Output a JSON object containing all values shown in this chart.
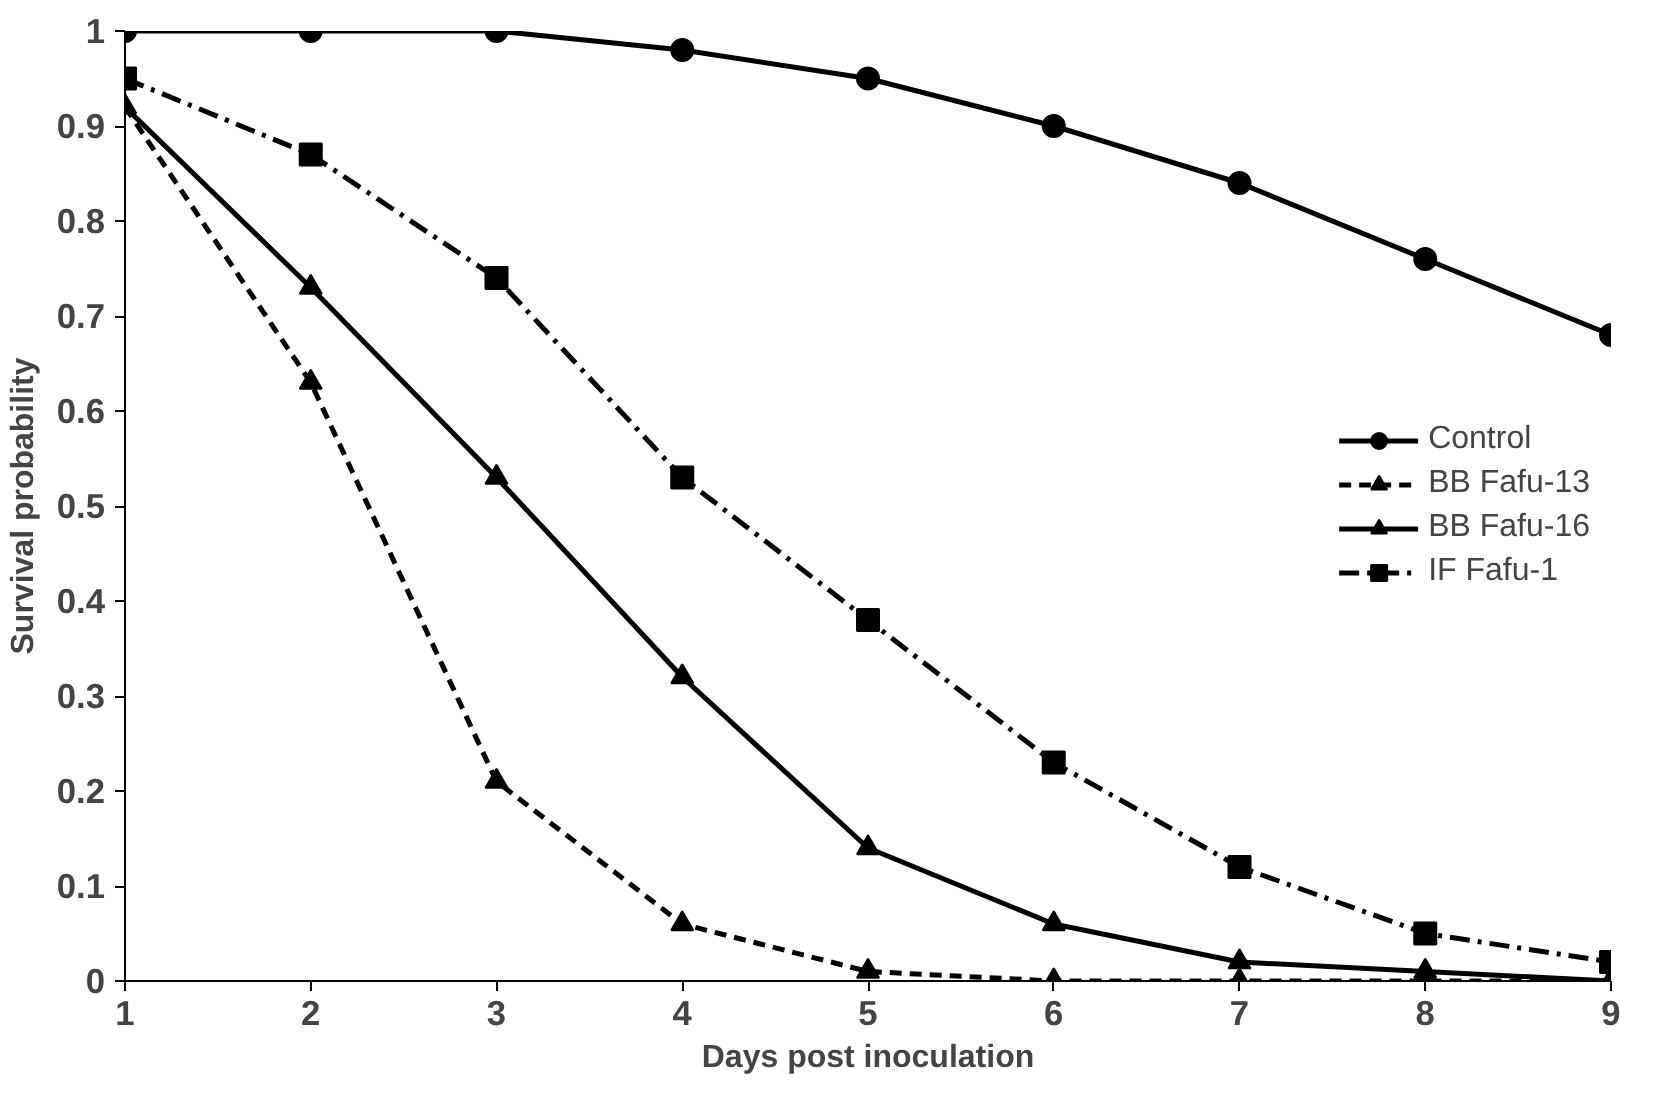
{
  "chart_data": {
    "type": "line",
    "xlabel": "Days post inoculation",
    "ylabel": "Survival probability",
    "x": [
      1,
      2,
      3,
      4,
      5,
      6,
      7,
      8,
      9
    ],
    "series": [
      {
        "name": "Control",
        "color": "#000000",
        "marker": "circle",
        "line_style": "solid",
        "values": [
          1,
          1,
          1,
          0.98,
          0.95,
          0.9,
          0.84,
          0.76,
          0.68
        ]
      },
      {
        "name": "BB Fafu-13",
        "color": "#000000",
        "marker": "triangle",
        "line_style": "dashed",
        "values": [
          0.92,
          0.63,
          0.21,
          0.06,
          0.01,
          0,
          0,
          0,
          0
        ]
      },
      {
        "name": "BB Fafu-16",
        "color": "#000000",
        "marker": "triangle",
        "line_style": "solid",
        "values": [
          0.92,
          0.73,
          0.53,
          0.32,
          0.14,
          0.06,
          0.02,
          0.01,
          0
        ]
      },
      {
        "name": "IF Fafu-1",
        "color": "#000000",
        "marker": "square",
        "line_style": "dashdot",
        "values": [
          0.95,
          0.87,
          0.74,
          0.53,
          0.38,
          0.23,
          0.12,
          0.05,
          0.02
        ]
      }
    ],
    "xlim": [
      1,
      9
    ],
    "ylim": [
      0,
      1
    ],
    "xticks": [
      1,
      2,
      3,
      4,
      5,
      6,
      7,
      8,
      9
    ],
    "yticks": [
      0,
      0.1,
      0.2,
      0.3,
      0.4,
      0.5,
      0.6,
      0.7,
      0.8,
      0.9,
      1
    ],
    "grid": false,
    "legend": "right"
  }
}
